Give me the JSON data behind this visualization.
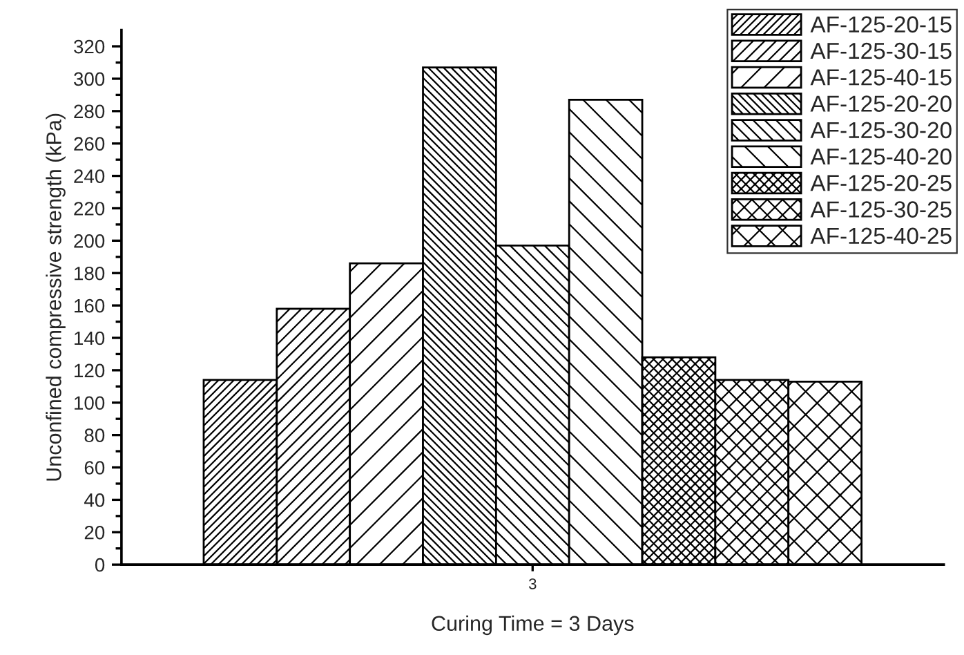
{
  "chart_data": {
    "type": "bar",
    "xlabel": "Curing Time = 3 Days",
    "ylabel": "Unconfined compressive strength (kPa)",
    "categories": [
      "3"
    ],
    "series": [
      {
        "name": "AF-125-20-15",
        "color": "#000000",
        "values": [
          114
        ]
      },
      {
        "name": "AF-125-30-15",
        "color": "#000000",
        "values": [
          158
        ]
      },
      {
        "name": "AF-125-40-15",
        "color": "#000000",
        "values": [
          186
        ]
      },
      {
        "name": "AF-125-20-20",
        "color": "#000000",
        "values": [
          307
        ]
      },
      {
        "name": "AF-125-30-20",
        "color": "#000000",
        "values": [
          197
        ]
      },
      {
        "name": "AF-125-40-20",
        "color": "#000000",
        "values": [
          287
        ]
      },
      {
        "name": "AF-125-20-25",
        "color": "#000000",
        "values": [
          128
        ]
      },
      {
        "name": "AF-125-30-25",
        "color": "#000000",
        "values": [
          114
        ]
      },
      {
        "name": "AF-125-40-25",
        "color": "#000000",
        "values": [
          113
        ]
      }
    ],
    "ylim": [
      0,
      330
    ],
    "yticks": [
      0,
      20,
      40,
      60,
      80,
      100,
      120,
      140,
      160,
      180,
      200,
      220,
      240,
      260,
      280,
      300,
      320
    ],
    "grid": false,
    "legend": "top right"
  }
}
